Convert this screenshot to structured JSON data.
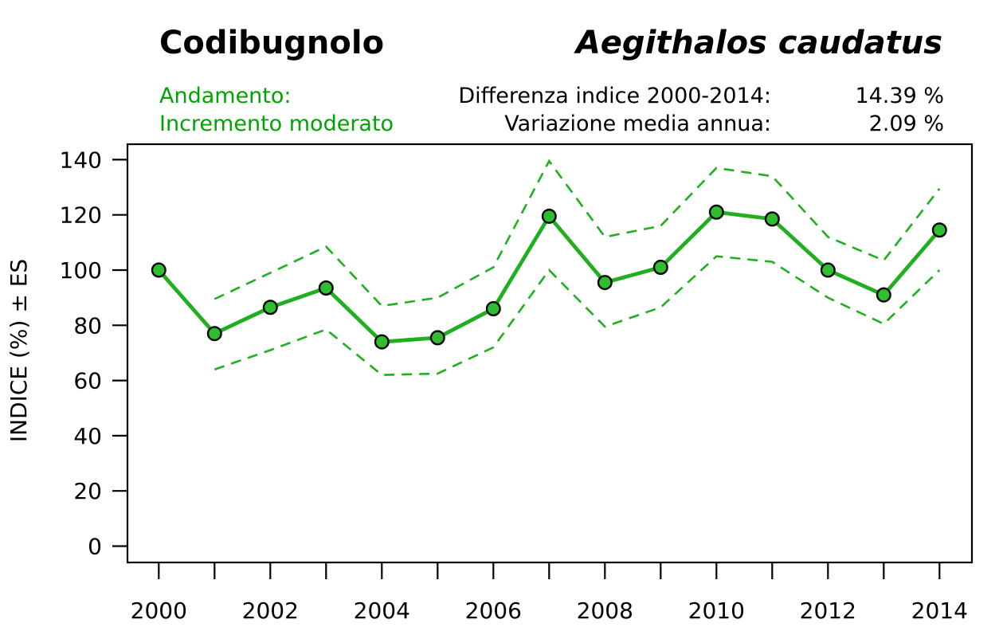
{
  "header": {
    "common_name": "Codibugnolo",
    "scientific_name": "Aegithalos caudatus",
    "trend_label": "Andamento:",
    "trend_value": "Incremento moderato",
    "diff_label": "Differenza indice 2000-2014:",
    "diff_value": "14.39 %",
    "annual_var_label": "Variazione media annua:",
    "annual_var_value": "2.09 %"
  },
  "colors": {
    "green_text": "#00a400",
    "line_green": "#1faf1f",
    "marker_fill": "#2fbe2f",
    "marker_stroke": "#000000",
    "axis_color": "#000000"
  },
  "chart_data": {
    "type": "line",
    "title": "",
    "xlabel": "",
    "ylabel": "INDICE (%) ± ES",
    "ylim": [
      0,
      140
    ],
    "yticks": [
      0,
      20,
      40,
      60,
      80,
      100,
      120,
      140
    ],
    "x": [
      2000,
      2001,
      2002,
      2003,
      2004,
      2005,
      2006,
      2007,
      2008,
      2009,
      2010,
      2011,
      2012,
      2013,
      2014
    ],
    "xticks_labeled": [
      2000,
      2002,
      2004,
      2006,
      2008,
      2010,
      2012,
      2014
    ],
    "grid": false,
    "legend": "none",
    "series": [
      {
        "name": "indice",
        "style": "solid-markers",
        "values": [
          100,
          77,
          86.5,
          93.5,
          74,
          75.5,
          86,
          119.5,
          95.5,
          101,
          121,
          118.5,
          100,
          91,
          114.5
        ]
      },
      {
        "name": "indice + ES",
        "style": "dashed",
        "values": [
          null,
          89.5,
          99,
          108.5,
          87,
          90,
          101,
          139.5,
          112,
          116,
          137,
          134,
          112,
          103.5,
          129.5
        ]
      },
      {
        "name": "indice - ES",
        "style": "dashed",
        "values": [
          null,
          64,
          71,
          78.5,
          62,
          62.5,
          72,
          100,
          79.5,
          86.5,
          105,
          103,
          90,
          80.5,
          100
        ]
      }
    ]
  }
}
